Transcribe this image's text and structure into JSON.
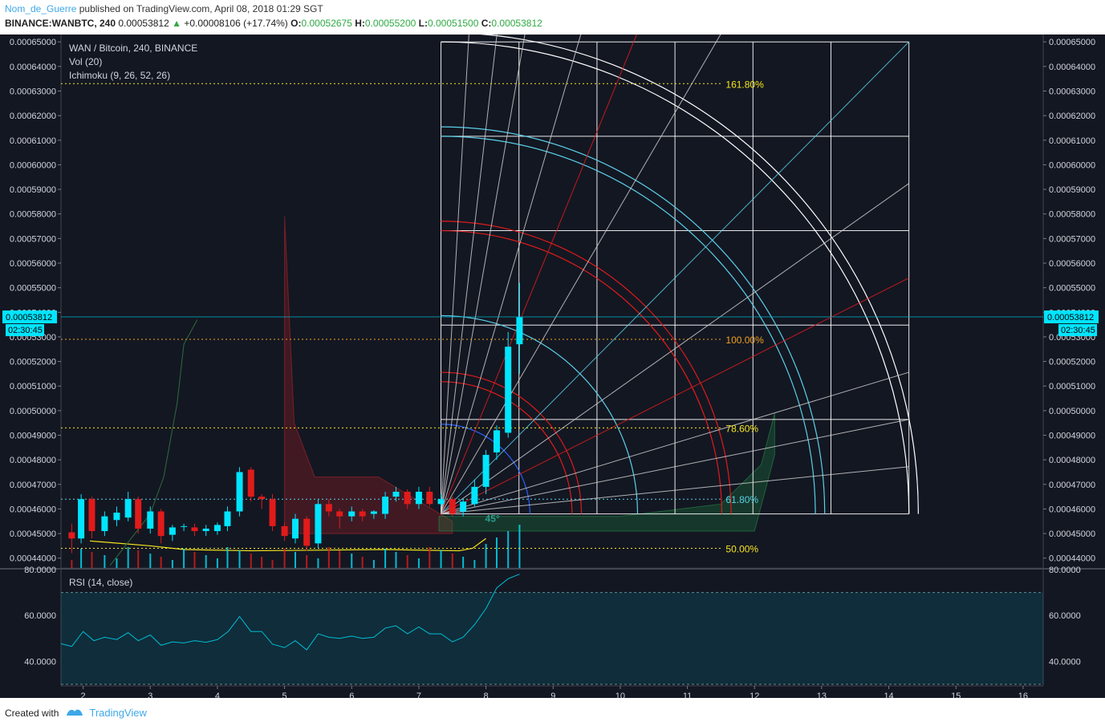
{
  "header": {
    "user": "Nom_de_Guerre",
    "published": "published on TradingView.com, April 08, 2018 01:29 SGT",
    "symbol": "BINANCE:WANBTC, 240",
    "price": "0.00053812",
    "change": "+0.00008106 (+17.74%)",
    "o_label": "O:",
    "o_value": "0.00052675",
    "h_label": "H:",
    "h_value": "0.00055200",
    "l_label": "L:",
    "l_value": "0.00051500",
    "c_label": "C:",
    "c_value": "0.00053812"
  },
  "legend": {
    "line1": "WAN / Bitcoin, 240, BINANCE",
    "line2": "Vol (20)",
    "line3": "Ichimoku (9, 26, 52, 26)"
  },
  "rsi_label": "RSI (14, close)",
  "last_price_label": "0.00053812",
  "countdown_label": "02:30:45",
  "footer": {
    "created": "Created with",
    "brand": "TradingView"
  },
  "colors": {
    "background": "#131722",
    "bull": "#00e5ff",
    "bear": "#e01b1b",
    "fib_yellow": "#f5e51e",
    "fib_orange": "#f0a020",
    "fib_cyan": "#5ad0e8",
    "grid_white": "#ffffff"
  },
  "chart_data": {
    "type": "candlestick",
    "price_axis": {
      "ticks": [
        "0.00065000",
        "0.00064000",
        "0.00063000",
        "0.00062000",
        "0.00061000",
        "0.00060000",
        "0.00059000",
        "0.00058000",
        "0.00057000",
        "0.00056000",
        "0.00055000",
        "0.00054000",
        "0.00053000",
        "0.00052000",
        "0.00051000",
        "0.00050000",
        "0.00049000",
        "0.00048000",
        "0.00047000",
        "0.00046000",
        "0.00045000",
        "0.00044000"
      ],
      "range": [
        0.000436,
        0.000653
      ]
    },
    "time_axis": {
      "ticks": [
        "2",
        "3",
        "4",
        "5",
        "6",
        "7",
        "8",
        "9",
        "10",
        "11",
        "12",
        "13",
        "14",
        "15",
        "16"
      ],
      "range": [
        1.67,
        16.3
      ]
    },
    "fib_levels": [
      {
        "label": "161.80%",
        "price": 0.000633,
        "color": "#f5e51e"
      },
      {
        "label": "100.00%",
        "price": 0.000529,
        "color": "#f0a020"
      },
      {
        "label": "78.60%",
        "price": 0.000493,
        "color": "#f5e51e"
      },
      {
        "label": "61.80%",
        "price": 0.000464,
        "color": "#5ad0e8"
      },
      {
        "label": "50.00%",
        "price": 0.000444,
        "color": "#f5e51e"
      }
    ],
    "angle_label": "45°",
    "candles": [
      [
        1.83,
        0.0004505,
        0.000448,
        0.000454,
        0.000442
      ],
      [
        1.97,
        0.000448,
        0.000464,
        0.000466,
        0.000446
      ],
      [
        2.13,
        0.000464,
        0.000451,
        0.000465,
        0.000448
      ],
      [
        2.32,
        0.000451,
        0.000457,
        0.000459,
        0.000449
      ],
      [
        2.5,
        0.0004555,
        0.0004585,
        0.000461,
        0.000453
      ],
      [
        2.67,
        0.0004565,
        0.000464,
        0.000467,
        0.000455
      ],
      [
        2.82,
        0.000464,
        0.000452,
        0.000465,
        0.00045
      ],
      [
        3.0,
        0.000452,
        0.000459,
        0.000461,
        0.00045
      ],
      [
        3.16,
        0.000459,
        0.000449,
        0.00046,
        0.000446
      ],
      [
        3.33,
        0.0004495,
        0.0004525,
        0.0004535,
        0.000447
      ],
      [
        3.5,
        0.000453,
        0.000453,
        0.000454,
        0.000451
      ],
      [
        3.66,
        0.0004525,
        0.000451,
        0.000454,
        0.000449
      ],
      [
        3.83,
        0.000451,
        0.000452,
        0.0004535,
        0.000449
      ],
      [
        4.0,
        0.000451,
        0.0004535,
        0.0004545,
        0.0004495
      ],
      [
        4.15,
        0.000453,
        0.000459,
        0.000461,
        0.000451
      ],
      [
        4.33,
        0.000459,
        0.000475,
        0.000477,
        0.000457
      ],
      [
        4.5,
        0.000476,
        0.000465,
        0.000477,
        0.000463
      ],
      [
        4.66,
        0.000465,
        0.000464,
        0.000466,
        0.00046
      ],
      [
        4.82,
        0.000464,
        0.000453,
        0.000466,
        0.000451
      ],
      [
        5.0,
        0.000453,
        0.000449,
        0.0004545,
        0.000447
      ],
      [
        5.16,
        0.000448,
        0.000456,
        0.000458,
        0.000446
      ],
      [
        5.33,
        0.000456,
        0.000445,
        0.000457,
        0.000443
      ],
      [
        5.5,
        0.000446,
        0.000462,
        0.000464,
        0.000444
      ],
      [
        5.66,
        0.000462,
        0.000459,
        0.000464,
        0.000457
      ],
      [
        5.82,
        0.000459,
        0.000457,
        0.00046,
        0.000452
      ],
      [
        6.0,
        0.000457,
        0.000459,
        0.000461,
        0.000455
      ],
      [
        6.16,
        0.000459,
        0.000457,
        0.00046,
        0.000455
      ],
      [
        6.33,
        0.000458,
        0.000459,
        0.0004595,
        0.000456
      ],
      [
        6.5,
        0.000458,
        0.000465,
        0.000467,
        0.000456
      ],
      [
        6.66,
        0.000465,
        0.000467,
        0.000469,
        0.000463
      ],
      [
        6.83,
        0.000467,
        0.000462,
        0.000468,
        0.00046
      ],
      [
        7.0,
        0.000462,
        0.000467,
        0.000469,
        0.00046
      ],
      [
        7.16,
        0.000467,
        0.000462,
        0.000469,
        0.000461
      ],
      [
        7.33,
        0.000462,
        0.000464,
        0.000466,
        0.000461
      ],
      [
        7.5,
        0.000464,
        0.000458,
        0.000465,
        0.000457
      ],
      [
        7.66,
        0.000459,
        0.000463,
        0.000464,
        0.000457
      ],
      [
        7.83,
        0.000462,
        0.000469,
        0.000472,
        0.000461
      ],
      [
        8.0,
        0.000469,
        0.000482,
        0.000484,
        0.000466
      ],
      [
        8.16,
        0.000483,
        0.000492,
        0.000494,
        0.00048
      ],
      [
        8.33,
        0.000491,
        0.000526,
        0.000532,
        0.000489
      ],
      [
        8.5,
        0.000527,
        0.000538,
        0.000552,
        0.000515
      ]
    ],
    "rsi": {
      "ticks": [
        "80.0000",
        "60.0000",
        "40.0000"
      ],
      "range": [
        30,
        80
      ],
      "band": [
        30,
        70
      ],
      "values": [
        [
          1.67,
          47.7
        ],
        [
          1.83,
          46.5
        ],
        [
          2.0,
          53
        ],
        [
          2.16,
          49
        ],
        [
          2.32,
          50.5
        ],
        [
          2.5,
          49.5
        ],
        [
          2.67,
          52.5
        ],
        [
          2.82,
          49
        ],
        [
          3.0,
          51.5
        ],
        [
          3.16,
          47
        ],
        [
          3.33,
          48.5
        ],
        [
          3.5,
          48
        ],
        [
          3.66,
          49
        ],
        [
          3.83,
          48.3
        ],
        [
          4.0,
          49.5
        ],
        [
          4.16,
          53
        ],
        [
          4.33,
          59.5
        ],
        [
          4.5,
          53
        ],
        [
          4.66,
          53
        ],
        [
          4.82,
          47.5
        ],
        [
          5.0,
          46
        ],
        [
          5.16,
          49
        ],
        [
          5.33,
          45
        ],
        [
          5.5,
          52
        ],
        [
          5.66,
          50.5
        ],
        [
          5.82,
          50
        ],
        [
          6.0,
          51
        ],
        [
          6.16,
          50
        ],
        [
          6.33,
          50.5
        ],
        [
          6.5,
          54.5
        ],
        [
          6.66,
          55.5
        ],
        [
          6.83,
          52
        ],
        [
          7.0,
          55
        ],
        [
          7.16,
          52
        ],
        [
          7.33,
          52
        ],
        [
          7.5,
          48.5
        ],
        [
          7.66,
          50.5
        ],
        [
          7.83,
          56
        ],
        [
          8.0,
          63
        ],
        [
          8.16,
          72
        ],
        [
          8.33,
          76
        ],
        [
          8.5,
          78
        ]
      ]
    }
  }
}
